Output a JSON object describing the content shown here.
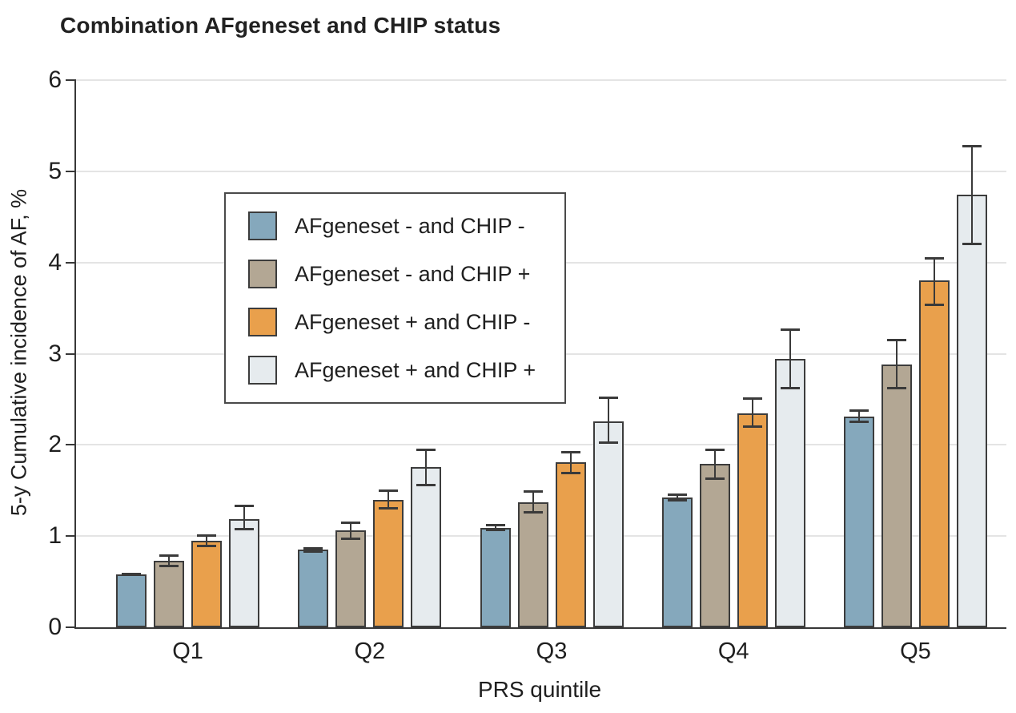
{
  "figure": {
    "background": "#ffffff"
  },
  "colors": {
    "axis": "#383838",
    "gridline": "#e4e4e4",
    "error_bar": "#3a3a3a",
    "bar_border": "#3c3c3c",
    "text": "#1f1f1f"
  },
  "chart_data": {
    "type": "bar",
    "title": "Combination AFgeneset and CHIP status",
    "xlabel": "PRS quintile",
    "ylabel": "5-y Cumulative incidence of AF, %",
    "categories": [
      "Q1",
      "Q2",
      "Q3",
      "Q4",
      "Q5"
    ],
    "ylim": [
      0,
      6
    ],
    "y_ticks": [
      0,
      1,
      2,
      3,
      4,
      5,
      6
    ],
    "grid": "horizontal",
    "legend_position": "upper-left-inside",
    "error_bars": true,
    "series": [
      {
        "name": "AFgeneset - and CHIP -",
        "color": "#85a8bc",
        "values": [
          0.58,
          0.85,
          1.09,
          1.42,
          2.31
        ],
        "ci_low": [
          0.56,
          0.82,
          1.05,
          1.38,
          2.24
        ],
        "ci_high": [
          0.6,
          0.88,
          1.13,
          1.47,
          2.39
        ]
      },
      {
        "name": "AFgeneset - and CHIP +",
        "color": "#b3a794",
        "values": [
          0.73,
          1.06,
          1.37,
          1.79,
          2.88
        ],
        "ci_low": [
          0.66,
          0.96,
          1.25,
          1.62,
          2.61
        ],
        "ci_high": [
          0.8,
          1.16,
          1.5,
          1.96,
          3.16
        ]
      },
      {
        "name": "AFgeneset + and CHIP -",
        "color": "#e9a04c",
        "values": [
          0.95,
          1.4,
          1.81,
          2.35,
          3.8
        ],
        "ci_low": [
          0.88,
          1.29,
          1.68,
          2.19,
          3.52
        ],
        "ci_high": [
          1.02,
          1.51,
          1.93,
          2.52,
          4.06
        ]
      },
      {
        "name": "AFgeneset + and CHIP +",
        "color": "#e6ebee",
        "values": [
          1.19,
          1.76,
          2.26,
          2.94,
          4.74
        ],
        "ci_low": [
          1.06,
          1.55,
          2.01,
          2.61,
          4.19
        ],
        "ci_high": [
          1.34,
          1.96,
          2.53,
          3.28,
          5.29
        ]
      }
    ]
  }
}
